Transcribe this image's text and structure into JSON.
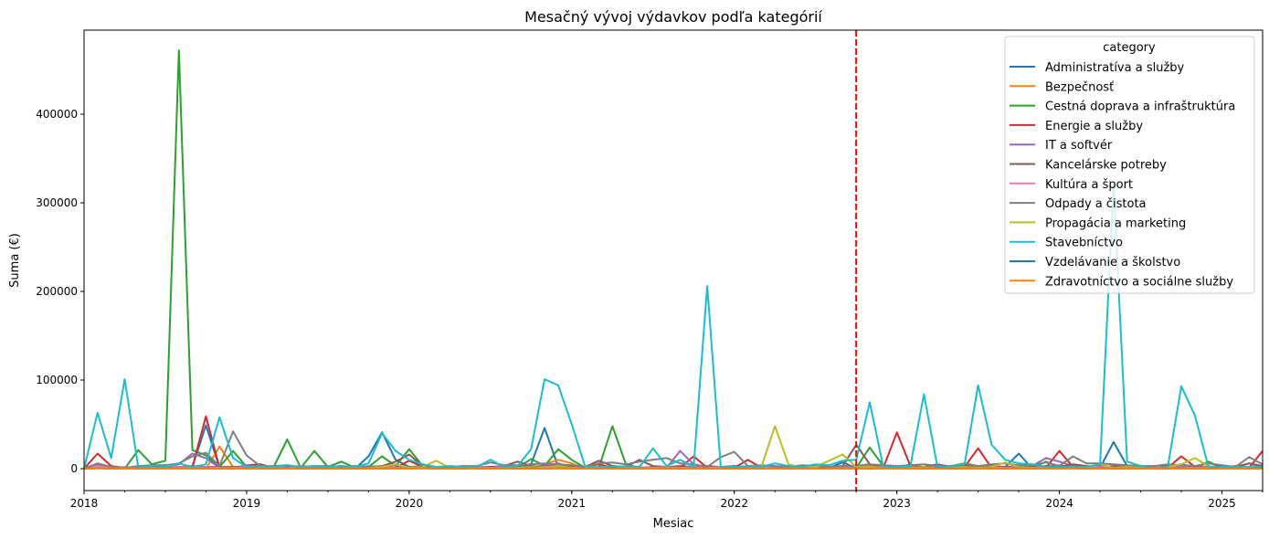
{
  "chart_data": {
    "type": "line",
    "title": "Mesačný vývoj výdavkov podľa kategórií",
    "xlabel": "Mesiac",
    "ylabel": "Suma (€)",
    "x_start": "2018-01",
    "x_frequency": "monthly",
    "x_count": 88,
    "xlim_months": [
      0,
      87
    ],
    "xticks": [
      {
        "label": "2018",
        "month": 0
      },
      {
        "label": "2019",
        "month": 12
      },
      {
        "label": "2020",
        "month": 24
      },
      {
        "label": "2021",
        "month": 36
      },
      {
        "label": "2022",
        "month": 48
      },
      {
        "label": "2023",
        "month": 60
      },
      {
        "label": "2024",
        "month": 72
      },
      {
        "label": "2025",
        "month": 84
      }
    ],
    "yticks": [
      0,
      100000,
      200000,
      300000,
      400000
    ],
    "ylim": [
      -24700,
      494800
    ],
    "grid": false,
    "vline": {
      "month": 57,
      "label_month": "2022-10",
      "color": "#ff0000",
      "style": "dashed"
    },
    "legend": {
      "title": "category",
      "placement": "top-right"
    },
    "series": [
      {
        "name": "Administratíva a služby",
        "color": "#1f77b4",
        "values": [
          0,
          1000,
          0,
          0,
          1000,
          1000,
          0,
          1000,
          2000,
          49000,
          1000,
          0,
          1000,
          0,
          0,
          1000,
          0,
          0,
          1000,
          0,
          0,
          14000,
          41000,
          10000,
          2000,
          1000,
          0,
          1000,
          0,
          1000,
          0,
          1000,
          0,
          5000,
          46000,
          2000,
          1000,
          0,
          1000,
          0,
          1000,
          0,
          1000,
          0,
          1000,
          0,
          1000,
          0,
          0,
          1000,
          0,
          1000,
          0,
          1000,
          0,
          1000,
          7000,
          1000,
          0,
          1000,
          0,
          1000,
          0,
          1000,
          0,
          1000,
          0,
          1000,
          2000,
          17000,
          0,
          1000,
          0,
          1000,
          0,
          1000,
          30000,
          3000,
          1000,
          0,
          1000,
          0,
          1000,
          0,
          1000,
          0,
          1000,
          0
        ]
      },
      {
        "name": "Bezpečnosť",
        "color": "#ff7f0e",
        "values": [
          0,
          2000,
          0,
          0,
          1000,
          0,
          0,
          1000,
          2000,
          0,
          25000,
          2000,
          0,
          1000,
          0,
          0,
          1000,
          0,
          0,
          1000,
          0,
          0,
          1000,
          0,
          0,
          1000,
          0,
          0,
          1000,
          0,
          0,
          1000,
          0,
          0,
          5000,
          10000,
          6000,
          0,
          1000,
          0,
          0,
          1000,
          0,
          0,
          1000,
          0,
          0,
          1000,
          0,
          0,
          1000,
          0,
          0,
          1000,
          0,
          0,
          1000,
          0,
          3000,
          0,
          1000,
          0,
          0,
          1000,
          0,
          0,
          1000,
          0,
          0,
          1000,
          0,
          2000,
          4000,
          1000,
          0,
          1000,
          0,
          0,
          1000,
          0,
          0,
          5000,
          1000,
          0,
          1000,
          0,
          1000,
          0
        ]
      },
      {
        "name": "Cestná doprava a infraštruktúra",
        "color": "#2ca02c",
        "values": [
          0,
          1000,
          0,
          0,
          21000,
          5000,
          9000,
          472000,
          21000,
          15000,
          2000,
          20000,
          2000,
          1000,
          2000,
          33000,
          1000,
          20000,
          2000,
          8000,
          1000,
          2000,
          14000,
          3000,
          22000,
          3000,
          1000,
          2000,
          1000,
          1000,
          2000,
          1000,
          1000,
          11000,
          3000,
          22000,
          10000,
          1000,
          1000,
          48000,
          5000,
          1000,
          2000,
          1000,
          2000,
          1000,
          1000,
          1000,
          2000,
          1000,
          1000,
          1000,
          1000,
          2000,
          1000,
          1000,
          2000,
          1000,
          24000,
          3000,
          1000,
          5000,
          1000,
          2000,
          1000,
          4000,
          1000,
          2000,
          1000,
          1000,
          1000,
          8000,
          1000,
          2000,
          1000,
          1000,
          2000,
          1000,
          1000,
          1000,
          3000,
          1000,
          1000,
          8000,
          1000,
          2000,
          1000,
          0
        ]
      },
      {
        "name": "Energie a služby",
        "color": "#d62728",
        "values": [
          0,
          17000,
          3000,
          1000,
          1000,
          0,
          1000,
          0,
          2000,
          59000,
          1000,
          0,
          4000,
          5000,
          1000,
          0,
          2000,
          1000,
          0,
          1000,
          2000,
          1000,
          3000,
          1000,
          9000,
          2000,
          1000,
          0,
          1000,
          2000,
          0,
          1000,
          0,
          2000,
          1000,
          3000,
          1000,
          2000,
          5000,
          1000,
          1000,
          2000,
          0,
          1000,
          1000,
          14000,
          1000,
          2000,
          1000,
          10000,
          1000,
          1000,
          2000,
          0,
          1000,
          1000,
          1000,
          1000,
          2000,
          1000,
          41000,
          3000,
          1000,
          0,
          1000,
          2000,
          23000,
          1000,
          2000,
          1000,
          3000,
          1000,
          20000,
          2000,
          1000,
          3000,
          1000,
          1000,
          1000,
          2000,
          1000,
          14000,
          2000,
          1000,
          1000,
          3000,
          1000,
          20000
        ]
      },
      {
        "name": "IT a softvér",
        "color": "#9467bd",
        "values": [
          0,
          5000,
          2000,
          1000,
          1000,
          2000,
          1000,
          5000,
          17000,
          12000,
          1000,
          1000,
          4000,
          2000,
          1000,
          1000,
          2000,
          1000,
          1000,
          2000,
          1000,
          3000,
          2000,
          1000,
          2000,
          1000,
          1000,
          2000,
          1000,
          1000,
          2000,
          1000,
          1000,
          2000,
          3000,
          6000,
          2000,
          1000,
          1000,
          3000,
          1000,
          1000,
          2000,
          1000,
          20000,
          5000,
          1000,
          2000,
          1000,
          1000,
          2000,
          1000,
          1000,
          2000,
          1000,
          1000,
          2000,
          3000,
          5000,
          2000,
          1000,
          2000,
          1000,
          1000,
          2000,
          1000,
          2000,
          1000,
          1000,
          2000,
          3000,
          12000,
          8000,
          3000,
          1000,
          2000,
          1000,
          2000,
          1000,
          1000,
          3000,
          5000,
          2000,
          1000,
          2000,
          1000,
          6000,
          1000
        ]
      },
      {
        "name": "Kancelárske potreby",
        "color": "#8c564b",
        "values": [
          0,
          3000,
          1000,
          1000,
          2000,
          3000,
          2000,
          2000,
          3000,
          2000,
          2000,
          2000,
          2000,
          3000,
          2000,
          2000,
          3000,
          2000,
          2000,
          3000,
          2000,
          2000,
          3000,
          8000,
          16000,
          3000,
          2000,
          2000,
          3000,
          2000,
          2000,
          3000,
          8000,
          3000,
          2000,
          4000,
          3000,
          2000,
          9000,
          3000,
          2000,
          10000,
          3000,
          2000,
          3000,
          2000,
          3000,
          2000,
          3000,
          2000,
          3000,
          2000,
          3000,
          2000,
          3000,
          2000,
          3000,
          27000,
          5000,
          3000,
          2000,
          3000,
          2000,
          5000,
          2000,
          3000,
          2000,
          3000,
          2000,
          3000,
          2000,
          3000,
          2000,
          5000,
          3000,
          2000,
          3000,
          2000,
          3000,
          2000,
          3000,
          2000,
          3000,
          2000,
          3000,
          2000,
          6000,
          3000
        ]
      },
      {
        "name": "Kultúra a šport",
        "color": "#e377c2",
        "values": [
          0,
          3000,
          1000,
          2000,
          1000,
          2000,
          4000,
          2000,
          1000,
          2000,
          1000,
          1000,
          2000,
          1000,
          2000,
          1000,
          3000,
          1000,
          2000,
          1000,
          2000,
          1000,
          2000,
          1000,
          2000,
          1000,
          1000,
          2000,
          1000,
          2000,
          1000,
          2000,
          1000,
          1000,
          2000,
          3000,
          1000,
          2000,
          1000,
          2000,
          1000,
          2000,
          1000,
          2000,
          1000,
          2000,
          1000,
          2000,
          1000,
          2000,
          1000,
          2000,
          1000,
          2000,
          1000,
          2000,
          1000,
          2000,
          1000,
          2000,
          1000,
          2000,
          1000,
          2000,
          1000,
          2000,
          1000,
          2000,
          1000,
          2000,
          1000,
          2000,
          1000,
          2000,
          1000,
          2000,
          1000,
          2000,
          1000,
          2000,
          1000,
          2000,
          1000,
          2000,
          1000,
          2000,
          1000,
          2000
        ]
      },
      {
        "name": "Odpady a čistota",
        "color": "#7f7f7f",
        "values": [
          0,
          6000,
          2000,
          1000,
          3000,
          4000,
          4000,
          6000,
          14000,
          18000,
          3000,
          42000,
          15000,
          3000,
          3000,
          4000,
          2000,
          3000,
          3000,
          2000,
          3000,
          2000,
          3000,
          4000,
          2000,
          3000,
          2000,
          2000,
          3000,
          3000,
          7000,
          4000,
          4000,
          5000,
          6000,
          5000,
          4000,
          2000,
          6000,
          7000,
          5000,
          8000,
          10000,
          12000,
          6000,
          5000,
          2000,
          13000,
          19000,
          3000,
          4000,
          3000,
          2000,
          4000,
          3000,
          2000,
          3000,
          3000,
          5000,
          4000,
          3000,
          4000,
          5000,
          3000,
          3000,
          6000,
          3000,
          5000,
          6000,
          4000,
          4000,
          7000,
          3000,
          14000,
          6000,
          6000,
          5000,
          4000,
          3000,
          3000,
          5000,
          4000,
          3000,
          6000,
          4000,
          2000,
          13000,
          5000
        ]
      },
      {
        "name": "Propagácia a marketing",
        "color": "#bcbd22",
        "values": [
          0,
          1000,
          0,
          1000,
          0,
          0,
          1000,
          0,
          1000,
          0,
          0,
          1000,
          0,
          1000,
          0,
          0,
          2000,
          0,
          1000,
          0,
          0,
          1000,
          2000,
          5000,
          1000,
          2000,
          9000,
          1000,
          0,
          1000,
          0,
          0,
          1000,
          2000,
          1000,
          3000,
          1000,
          0,
          1000,
          2000,
          0,
          1000,
          0,
          1000,
          0,
          1000,
          0,
          1000,
          0,
          1000,
          2000,
          48000,
          5000,
          1000,
          2000,
          9000,
          16000,
          2000,
          2000,
          1000,
          0,
          1000,
          2000,
          0,
          1000,
          2000,
          1000,
          2000,
          7000,
          2000,
          1000,
          0,
          1000,
          2000,
          1000,
          5000,
          1000,
          2000,
          1000,
          0,
          2000,
          5000,
          12000,
          3000,
          1000,
          0,
          2000,
          1000
        ]
      },
      {
        "name": "Stavebníctvo",
        "color": "#17becf",
        "values": [
          0,
          63000,
          12000,
          101000,
          2000,
          3000,
          2000,
          6000,
          2000,
          5000,
          58000,
          12000,
          2000,
          3000,
          2000,
          4000,
          2000,
          3000,
          2000,
          3000,
          2000,
          6000,
          40000,
          20000,
          10000,
          5000,
          2000,
          3000,
          2000,
          2000,
          10000,
          2000,
          3000,
          22000,
          101000,
          94000,
          50000,
          2000,
          2000,
          2000,
          3000,
          2000,
          23000,
          3000,
          10000,
          2000,
          206000,
          2000,
          2000,
          3000,
          2000,
          6000,
          3000,
          2000,
          5000,
          4000,
          9000,
          10000,
          75000,
          2000,
          2000,
          3000,
          84000,
          2000,
          2000,
          5000,
          94000,
          27000,
          10000,
          6000,
          5000,
          2000,
          2000,
          2000,
          2000,
          5000,
          320000,
          8000,
          3000,
          0,
          2000,
          93000,
          60000,
          2000,
          2000,
          2000,
          2000,
          2000
        ]
      },
      {
        "name": "Vzdelávanie a školstvo",
        "color": "#1f77b4",
        "values": [
          0,
          500,
          0,
          500,
          0,
          500,
          0,
          500,
          0,
          500,
          0,
          500,
          0,
          500,
          0,
          500,
          0,
          500,
          0,
          500,
          0,
          500,
          0,
          500,
          0,
          500,
          0,
          500,
          0,
          500,
          0,
          500,
          0,
          500,
          0,
          500,
          0,
          500,
          0,
          500,
          0,
          500,
          0,
          500,
          0,
          500,
          0,
          500,
          0,
          500,
          0,
          500,
          0,
          500,
          0,
          500,
          0,
          500,
          0,
          500,
          0,
          500,
          0,
          500,
          0,
          500,
          0,
          500,
          0,
          500,
          0,
          500,
          0,
          500,
          0,
          500,
          0,
          500,
          0,
          500,
          0,
          500,
          0,
          500,
          0,
          500,
          0,
          500
        ]
      },
      {
        "name": "Zdravotníctvo a sociálne služby",
        "color": "#ff7f0e",
        "values": [
          0,
          500,
          500,
          0,
          500,
          500,
          0,
          500,
          500,
          0,
          500,
          500,
          0,
          500,
          500,
          0,
          500,
          500,
          0,
          500,
          500,
          0,
          500,
          500,
          0,
          500,
          500,
          0,
          500,
          500,
          0,
          500,
          500,
          0,
          500,
          500,
          0,
          500,
          500,
          0,
          500,
          500,
          0,
          500,
          500,
          0,
          500,
          500,
          0,
          500,
          500,
          0,
          500,
          500,
          0,
          500,
          500,
          0,
          500,
          500,
          0,
          500,
          500,
          0,
          500,
          500,
          0,
          500,
          500,
          0,
          500,
          500,
          0,
          500,
          500,
          0,
          500,
          500,
          0,
          500,
          500,
          0,
          500,
          500,
          0,
          500,
          500,
          0
        ]
      }
    ]
  }
}
